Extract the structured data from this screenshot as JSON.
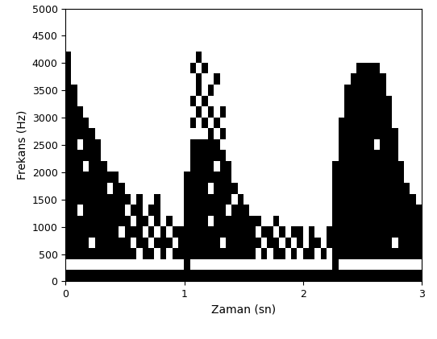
{
  "chart_data": {
    "type": "heatmap",
    "x_label": "Zaman (sn)",
    "y_label": "Frekans (Hz)",
    "xlim": [
      0,
      3
    ],
    "xticks": [
      0,
      1,
      2,
      3
    ],
    "ylim": [
      0,
      5000
    ],
    "yticks": [
      0,
      500,
      1000,
      1500,
      2000,
      2500,
      3000,
      3500,
      4000,
      4500,
      5000
    ],
    "color": "#000000",
    "cells": [
      [
        1,
        1,
        1,
        1,
        1,
        1,
        1,
        1,
        1,
        1,
        1,
        1,
        1,
        1,
        1,
        1,
        1,
        1,
        1,
        1,
        1,
        1,
        1,
        1,
        1,
        1,
        1,
        1,
        1,
        1,
        1,
        1,
        1,
        1,
        1,
        1,
        1,
        1,
        1,
        1,
        1,
        1,
        1,
        1,
        1,
        1,
        1,
        1,
        1,
        1,
        1,
        1,
        1,
        1,
        1,
        1,
        1,
        1,
        1,
        1
      ],
      [
        0,
        0,
        0,
        0,
        0,
        0,
        0,
        0,
        0,
        0,
        0,
        0,
        0,
        0,
        0,
        0,
        0,
        0,
        0,
        0,
        1,
        0,
        0,
        0,
        0,
        0,
        0,
        0,
        0,
        0,
        0,
        0,
        0,
        0,
        0,
        0,
        0,
        0,
        0,
        0,
        0,
        0,
        0,
        0,
        0,
        1,
        0,
        0,
        0,
        0,
        0,
        0,
        0,
        0,
        0,
        0,
        0,
        0,
        0,
        0
      ],
      [
        1,
        1,
        1,
        1,
        1,
        1,
        1,
        1,
        1,
        1,
        1,
        1,
        0,
        1,
        1,
        0,
        1,
        0,
        1,
        1,
        1,
        1,
        1,
        1,
        1,
        1,
        1,
        1,
        1,
        1,
        1,
        1,
        0,
        1,
        0,
        1,
        1,
        0,
        1,
        0,
        1,
        1,
        0,
        1,
        0,
        1,
        1,
        1,
        1,
        1,
        1,
        1,
        1,
        1,
        1,
        1,
        1,
        1,
        1,
        1
      ],
      [
        1,
        1,
        1,
        1,
        0,
        1,
        1,
        1,
        1,
        1,
        1,
        0,
        1,
        1,
        0,
        1,
        1,
        1,
        0,
        1,
        1,
        1,
        1,
        1,
        1,
        1,
        0,
        1,
        1,
        1,
        1,
        1,
        1,
        0,
        1,
        1,
        0,
        1,
        0,
        1,
        0,
        1,
        1,
        0,
        1,
        1,
        1,
        1,
        1,
        1,
        1,
        1,
        1,
        1,
        1,
        0,
        1,
        1,
        1,
        1
      ],
      [
        1,
        1,
        1,
        1,
        1,
        1,
        1,
        1,
        1,
        0,
        1,
        1,
        1,
        0,
        1,
        0,
        1,
        0,
        1,
        1,
        1,
        1,
        1,
        1,
        1,
        1,
        1,
        1,
        1,
        1,
        1,
        1,
        0,
        1,
        1,
        0,
        1,
        0,
        1,
        1,
        0,
        1,
        0,
        0,
        1,
        1,
        1,
        1,
        1,
        1,
        1,
        1,
        1,
        1,
        1,
        1,
        1,
        1,
        1,
        1
      ],
      [
        1,
        1,
        1,
        1,
        1,
        1,
        1,
        1,
        1,
        1,
        1,
        0,
        1,
        1,
        0,
        1,
        0,
        1,
        0,
        0,
        1,
        1,
        1,
        1,
        0,
        1,
        1,
        1,
        1,
        1,
        1,
        1,
        1,
        0,
        0,
        1,
        0,
        0,
        0,
        0,
        0,
        0,
        0,
        0,
        0,
        1,
        1,
        1,
        1,
        1,
        1,
        1,
        1,
        1,
        1,
        1,
        1,
        1,
        1,
        1
      ],
      [
        1,
        1,
        0,
        1,
        1,
        1,
        1,
        1,
        1,
        1,
        0,
        1,
        1,
        0,
        1,
        1,
        0,
        0,
        0,
        0,
        1,
        1,
        1,
        1,
        1,
        1,
        1,
        0,
        1,
        1,
        1,
        0,
        0,
        0,
        0,
        0,
        0,
        0,
        0,
        0,
        0,
        0,
        0,
        0,
        0,
        1,
        1,
        1,
        1,
        1,
        1,
        1,
        1,
        1,
        1,
        1,
        1,
        1,
        1,
        1
      ],
      [
        1,
        1,
        1,
        1,
        1,
        1,
        1,
        1,
        1,
        1,
        1,
        0,
        1,
        0,
        0,
        1,
        0,
        0,
        0,
        0,
        1,
        1,
        1,
        1,
        1,
        1,
        1,
        1,
        0,
        1,
        0,
        0,
        0,
        0,
        0,
        0,
        0,
        0,
        0,
        0,
        0,
        0,
        0,
        0,
        0,
        1,
        1,
        1,
        1,
        1,
        1,
        1,
        1,
        1,
        1,
        1,
        1,
        1,
        1,
        0
      ],
      [
        1,
        1,
        1,
        1,
        1,
        1,
        1,
        0,
        1,
        1,
        0,
        0,
        0,
        0,
        0,
        0,
        0,
        0,
        0,
        0,
        1,
        1,
        1,
        1,
        0,
        1,
        1,
        1,
        1,
        0,
        0,
        0,
        0,
        0,
        0,
        0,
        0,
        0,
        0,
        0,
        0,
        0,
        0,
        0,
        0,
        1,
        1,
        1,
        1,
        1,
        1,
        1,
        1,
        1,
        1,
        1,
        1,
        1,
        0,
        0
      ],
      [
        1,
        1,
        1,
        1,
        1,
        1,
        1,
        1,
        1,
        0,
        0,
        0,
        0,
        0,
        0,
        0,
        0,
        0,
        0,
        0,
        1,
        1,
        1,
        1,
        1,
        1,
        1,
        1,
        0,
        0,
        0,
        0,
        0,
        0,
        0,
        0,
        0,
        0,
        0,
        0,
        0,
        0,
        0,
        0,
        0,
        1,
        1,
        1,
        1,
        1,
        1,
        1,
        1,
        1,
        1,
        1,
        1,
        0,
        0,
        0
      ],
      [
        1,
        1,
        1,
        0,
        1,
        1,
        1,
        0,
        0,
        0,
        0,
        0,
        0,
        0,
        0,
        0,
        0,
        0,
        0,
        0,
        0,
        1,
        1,
        1,
        1,
        0,
        1,
        1,
        0,
        0,
        0,
        0,
        0,
        0,
        0,
        0,
        0,
        0,
        0,
        0,
        0,
        0,
        0,
        0,
        0,
        1,
        1,
        1,
        1,
        1,
        1,
        1,
        1,
        1,
        1,
        1,
        1,
        0,
        0,
        0
      ],
      [
        1,
        1,
        1,
        1,
        1,
        1,
        0,
        0,
        0,
        0,
        0,
        0,
        0,
        0,
        0,
        0,
        0,
        0,
        0,
        0,
        0,
        1,
        1,
        1,
        1,
        1,
        1,
        0,
        0,
        0,
        0,
        0,
        0,
        0,
        0,
        0,
        0,
        0,
        0,
        0,
        0,
        0,
        0,
        0,
        0,
        0,
        1,
        1,
        1,
        1,
        1,
        1,
        1,
        1,
        1,
        1,
        0,
        0,
        0,
        0
      ],
      [
        1,
        1,
        0,
        1,
        1,
        1,
        0,
        0,
        0,
        0,
        0,
        0,
        0,
        0,
        0,
        0,
        0,
        0,
        0,
        0,
        0,
        1,
        1,
        1,
        1,
        1,
        0,
        0,
        0,
        0,
        0,
        0,
        0,
        0,
        0,
        0,
        0,
        0,
        0,
        0,
        0,
        0,
        0,
        0,
        0,
        0,
        1,
        1,
        1,
        1,
        1,
        1,
        0,
        1,
        1,
        1,
        0,
        0,
        0,
        0
      ],
      [
        1,
        1,
        1,
        1,
        1,
        0,
        0,
        0,
        0,
        0,
        0,
        0,
        0,
        0,
        0,
        0,
        0,
        0,
        0,
        0,
        0,
        0,
        0,
        0,
        1,
        0,
        1,
        0,
        0,
        0,
        0,
        0,
        0,
        0,
        0,
        0,
        0,
        0,
        0,
        0,
        0,
        0,
        0,
        0,
        0,
        0,
        1,
        1,
        1,
        1,
        1,
        1,
        1,
        1,
        1,
        1,
        0,
        0,
        0,
        0
      ],
      [
        1,
        1,
        1,
        1,
        0,
        0,
        0,
        0,
        0,
        0,
        0,
        0,
        0,
        0,
        0,
        0,
        0,
        0,
        0,
        0,
        0,
        1,
        0,
        1,
        0,
        1,
        0,
        0,
        0,
        0,
        0,
        0,
        0,
        0,
        0,
        0,
        0,
        0,
        0,
        0,
        0,
        0,
        0,
        0,
        0,
        0,
        1,
        1,
        1,
        1,
        1,
        1,
        1,
        1,
        1,
        0,
        0,
        0,
        0,
        0
      ],
      [
        1,
        1,
        1,
        0,
        0,
        0,
        0,
        0,
        0,
        0,
        0,
        0,
        0,
        0,
        0,
        0,
        0,
        0,
        0,
        0,
        0,
        0,
        1,
        0,
        1,
        0,
        1,
        0,
        0,
        0,
        0,
        0,
        0,
        0,
        0,
        0,
        0,
        0,
        0,
        0,
        0,
        0,
        0,
        0,
        0,
        0,
        0,
        1,
        1,
        1,
        1,
        1,
        1,
        1,
        1,
        0,
        0,
        0,
        0,
        0
      ],
      [
        1,
        1,
        0,
        0,
        0,
        0,
        0,
        0,
        0,
        0,
        0,
        0,
        0,
        0,
        0,
        0,
        0,
        0,
        0,
        0,
        0,
        1,
        0,
        1,
        0,
        0,
        0,
        0,
        0,
        0,
        0,
        0,
        0,
        0,
        0,
        0,
        0,
        0,
        0,
        0,
        0,
        0,
        0,
        0,
        0,
        0,
        0,
        1,
        1,
        1,
        1,
        1,
        1,
        1,
        1,
        0,
        0,
        0,
        0,
        0
      ],
      [
        1,
        1,
        0,
        0,
        0,
        0,
        0,
        0,
        0,
        0,
        0,
        0,
        0,
        0,
        0,
        0,
        0,
        0,
        0,
        0,
        0,
        0,
        1,
        0,
        1,
        0,
        0,
        0,
        0,
        0,
        0,
        0,
        0,
        0,
        0,
        0,
        0,
        0,
        0,
        0,
        0,
        0,
        0,
        0,
        0,
        0,
        0,
        1,
        1,
        1,
        1,
        1,
        1,
        1,
        0,
        0,
        0,
        0,
        0,
        0
      ],
      [
        1,
        0,
        0,
        0,
        0,
        0,
        0,
        0,
        0,
        0,
        0,
        0,
        0,
        0,
        0,
        0,
        0,
        0,
        0,
        0,
        0,
        0,
        1,
        0,
        0,
        1,
        0,
        0,
        0,
        0,
        0,
        0,
        0,
        0,
        0,
        0,
        0,
        0,
        0,
        0,
        0,
        0,
        0,
        0,
        0,
        0,
        0,
        0,
        1,
        1,
        1,
        1,
        1,
        1,
        0,
        0,
        0,
        0,
        0,
        0
      ],
      [
        1,
        0,
        0,
        0,
        0,
        0,
        0,
        0,
        0,
        0,
        0,
        0,
        0,
        0,
        0,
        0,
        0,
        0,
        0,
        0,
        0,
        1,
        0,
        1,
        0,
        0,
        0,
        0,
        0,
        0,
        0,
        0,
        0,
        0,
        0,
        0,
        0,
        0,
        0,
        0,
        0,
        0,
        0,
        0,
        0,
        0,
        0,
        0,
        0,
        1,
        1,
        1,
        1,
        0,
        0,
        0,
        0,
        0,
        0,
        0
      ],
      [
        1,
        0,
        0,
        0,
        0,
        0,
        0,
        0,
        0,
        0,
        0,
        0,
        0,
        0,
        0,
        0,
        0,
        0,
        0,
        0,
        0,
        0,
        1,
        0,
        0,
        0,
        0,
        0,
        0,
        0,
        0,
        0,
        0,
        0,
        0,
        0,
        0,
        0,
        0,
        0,
        0,
        0,
        0,
        0,
        0,
        0,
        0,
        0,
        0,
        0,
        0,
        0,
        0,
        0,
        0,
        0,
        0,
        0,
        0,
        0
      ],
      [
        0,
        0,
        0,
        0,
        0,
        0,
        0,
        0,
        0,
        0,
        0,
        0,
        0,
        0,
        0,
        0,
        0,
        0,
        0,
        0,
        0,
        0,
        0,
        0,
        0,
        0,
        0,
        0,
        0,
        0,
        0,
        0,
        0,
        0,
        0,
        0,
        0,
        0,
        0,
        0,
        0,
        0,
        0,
        0,
        0,
        0,
        0,
        0,
        0,
        0,
        0,
        0,
        0,
        0,
        0,
        0,
        0,
        0,
        0,
        0
      ],
      [
        0,
        0,
        0,
        0,
        0,
        0,
        0,
        0,
        0,
        0,
        0,
        0,
        0,
        0,
        0,
        0,
        0,
        0,
        0,
        0,
        0,
        0,
        0,
        0,
        0,
        0,
        0,
        0,
        0,
        0,
        0,
        0,
        0,
        0,
        0,
        0,
        0,
        0,
        0,
        0,
        0,
        0,
        0,
        0,
        0,
        0,
        0,
        0,
        0,
        0,
        0,
        0,
        0,
        0,
        0,
        0,
        0,
        0,
        0,
        0
      ],
      [
        0,
        0,
        0,
        0,
        0,
        0,
        0,
        0,
        0,
        0,
        0,
        0,
        0,
        0,
        0,
        0,
        0,
        0,
        0,
        0,
        0,
        0,
        0,
        0,
        0,
        0,
        0,
        0,
        0,
        0,
        0,
        0,
        0,
        0,
        0,
        0,
        0,
        0,
        0,
        0,
        0,
        0,
        0,
        0,
        0,
        0,
        0,
        0,
        0,
        0,
        0,
        0,
        0,
        0,
        0,
        0,
        0,
        0,
        0,
        0
      ],
      [
        0,
        0,
        0,
        0,
        0,
        0,
        0,
        0,
        0,
        0,
        0,
        0,
        0,
        0,
        0,
        0,
        0,
        0,
        0,
        0,
        0,
        0,
        0,
        0,
        0,
        0,
        0,
        0,
        0,
        0,
        0,
        0,
        0,
        0,
        0,
        0,
        0,
        0,
        0,
        0,
        0,
        0,
        0,
        0,
        0,
        0,
        0,
        0,
        0,
        0,
        0,
        0,
        0,
        0,
        0,
        0,
        0,
        0,
        0,
        0
      ]
    ]
  }
}
